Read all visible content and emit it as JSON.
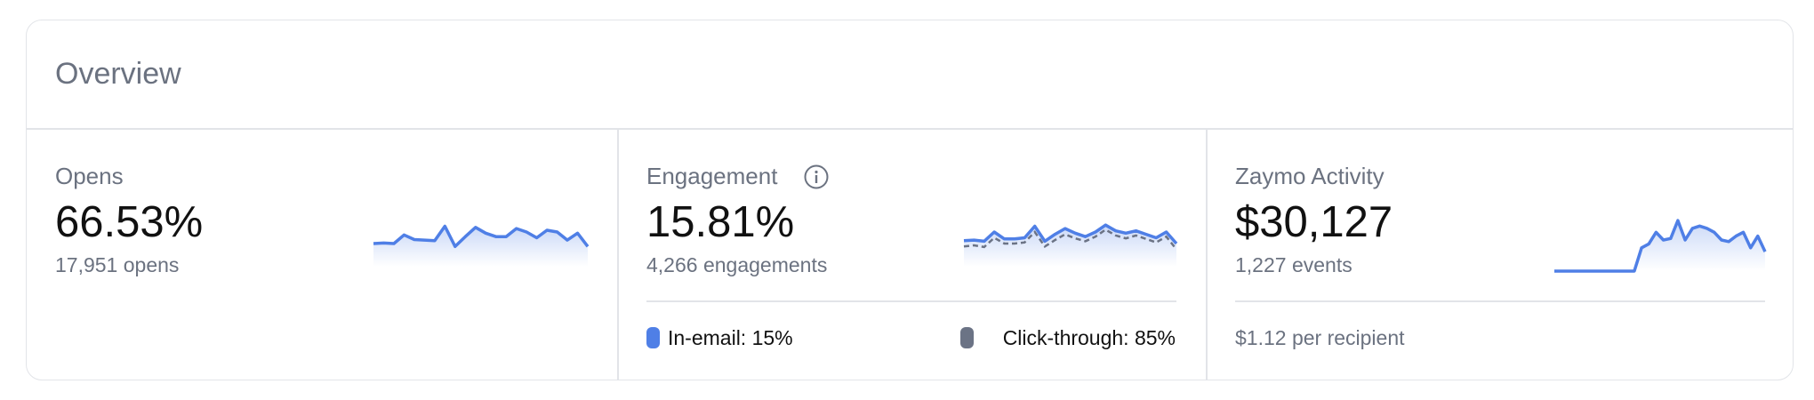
{
  "header": {
    "title": "Overview"
  },
  "metrics": [
    {
      "label": "Opens",
      "value": "66.53%",
      "detail": "17,951 opens",
      "sparkline": [
        40,
        41,
        40,
        55,
        47,
        46,
        45,
        70,
        35,
        52,
        68,
        58,
        52,
        52,
        66,
        60,
        50,
        63,
        60,
        46,
        58,
        35
      ]
    },
    {
      "label": "Engagement",
      "value": "15.81%",
      "detail": "4,266 engagements",
      "sparkline": [
        45,
        46,
        44,
        60,
        48,
        48,
        50,
        70,
        44,
        56,
        66,
        58,
        52,
        60,
        72,
        62,
        58,
        62,
        56,
        50,
        60,
        40
      ],
      "sparkline2": [
        35,
        37,
        34,
        50,
        40,
        40,
        42,
        60,
        35,
        46,
        56,
        49,
        44,
        52,
        64,
        54,
        49,
        54,
        48,
        42,
        52,
        30
      ],
      "legend": [
        {
          "label": "In-email: 15%"
        },
        {
          "label": "Click-through: 85%"
        }
      ]
    },
    {
      "label": "Zaymo Activity",
      "value": "$30,127",
      "detail": "1,227 events",
      "sparkline": [
        0,
        0,
        0,
        0,
        0,
        0,
        0,
        0,
        0,
        0,
        0,
        0,
        30,
        35,
        50,
        40,
        42,
        65,
        40,
        55,
        58,
        55,
        50,
        40,
        38,
        45,
        50,
        30,
        45,
        25
      ],
      "footer": "$1.12 per recipient"
    }
  ]
}
